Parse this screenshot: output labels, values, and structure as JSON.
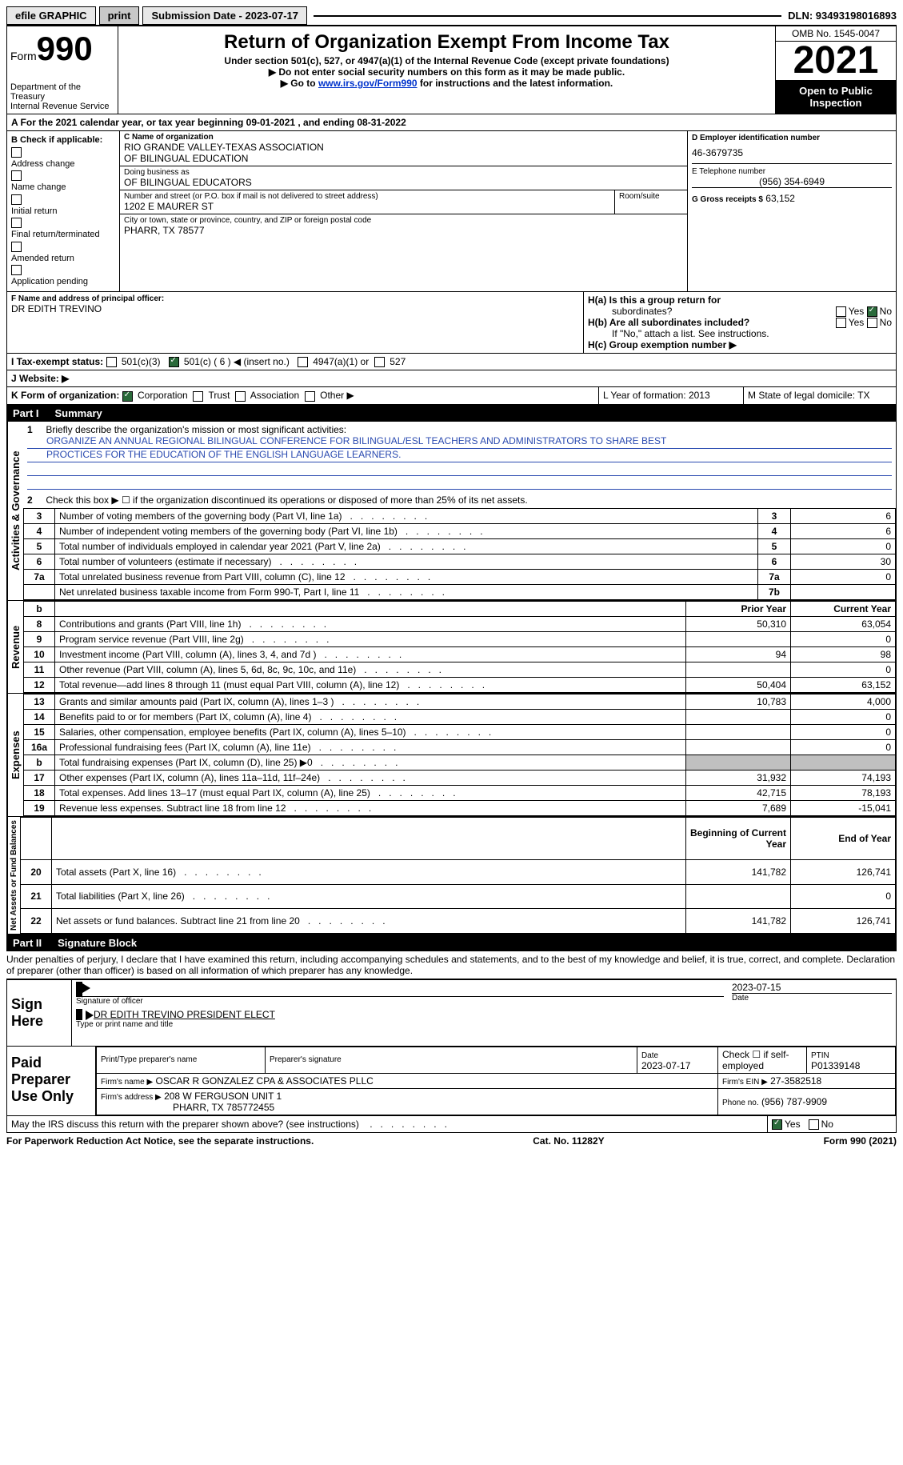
{
  "topbar": {
    "efile": "efile GRAPHIC",
    "print": "print",
    "subdate_label": "Submission Date - 2023-07-17",
    "dln_label": "DLN: 93493198016893"
  },
  "header": {
    "form_word": "Form",
    "form_num": "990",
    "dept": "Department of the Treasury",
    "irs": "Internal Revenue Service",
    "title": "Return of Organization Exempt From Income Tax",
    "subtitle": "Under section 501(c), 527, or 4947(a)(1) of the Internal Revenue Code (except private foundations)",
    "note1": "▶ Do not enter social security numbers on this form as it may be made public.",
    "note2_pre": "▶ Go to ",
    "note2_link": "www.irs.gov/Form990",
    "note2_post": " for instructions and the latest information.",
    "omb": "OMB No. 1545-0047",
    "year": "2021",
    "open": "Open to Public Inspection"
  },
  "period": {
    "line": "A For the 2021 calendar year, or tax year beginning 09-01-2021   , and ending 08-31-2022"
  },
  "blockB": {
    "label": "B Check if applicable:",
    "opts": [
      "Address change",
      "Name change",
      "Initial return",
      "Final return/terminated",
      "Amended return",
      "Application pending"
    ]
  },
  "blockC": {
    "name_label": "C Name of organization",
    "name1": "RIO GRANDE VALLEY-TEXAS ASSOCIATION",
    "name2": "OF BILINGUAL EDUCATION",
    "dba_label": "Doing business as",
    "dba": "OF BILINGUAL EDUCATORS",
    "addr_label": "Number and street (or P.O. box if mail is not delivered to street address)",
    "addr": "1202 E MAURER ST",
    "room_label": "Room/suite",
    "city_label": "City or town, state or province, country, and ZIP or foreign postal code",
    "city": "PHARR, TX   78577"
  },
  "blockD": {
    "label": "D Employer identification number",
    "val": "46-3679735"
  },
  "blockE": {
    "label": "E Telephone number",
    "val": "(956) 354-6949"
  },
  "blockG": {
    "label": "G Gross receipts $",
    "val": "63,152"
  },
  "blockF": {
    "label": "F Name and address of principal officer:",
    "val": "DR EDITH TREVINO"
  },
  "blockH": {
    "a": "H(a)  Is this a group return for",
    "a2": "subordinates?",
    "b": "H(b)  Are all subordinates included?",
    "b2": "If \"No,\" attach a list. See instructions.",
    "c": "H(c)  Group exemption number ▶"
  },
  "rowI": {
    "label": "I    Tax-exempt status:",
    "o1": "501(c)(3)",
    "o2": "501(c) ( 6 ) ◀ (insert no.)",
    "o3": "4947(a)(1) or",
    "o4": "527"
  },
  "rowJ": {
    "label": "J    Website: ▶"
  },
  "rowK": {
    "label": "K Form of organization:",
    "o1": "Corporation",
    "o2": "Trust",
    "o3": "Association",
    "o4": "Other ▶",
    "L": "L Year of formation: 2013",
    "M": "M State of legal domicile: TX"
  },
  "part1": {
    "label": "Part I",
    "title": "Summary",
    "l1a": "Briefly describe the organization's mission or most significant activities:",
    "l1b": "ORGANIZE AN ANNUAL REGIONAL BILINGUAL CONFERENCE FOR BILINGUAL/ESL TEACHERS AND ADMINISTRATORS TO SHARE BEST",
    "l1c": "PROCTICES FOR THE EDUCATION OF THE ENGLISH LANGUAGE LEARNERS.",
    "l2": "Check this box ▶ ☐  if the organization discontinued its operations or disposed of more than 25% of its net assets.",
    "vert_ag": "Activities & Governance",
    "vert_rev": "Revenue",
    "vert_exp": "Expenses",
    "vert_na": "Net Assets or Fund Balances"
  },
  "lines_ag": [
    {
      "n": "3",
      "t": "Number of voting members of the governing body (Part VI, line 1a)",
      "b": "3",
      "v": "6"
    },
    {
      "n": "4",
      "t": "Number of independent voting members of the governing body (Part VI, line 1b)",
      "b": "4",
      "v": "6"
    },
    {
      "n": "5",
      "t": "Total number of individuals employed in calendar year 2021 (Part V, line 2a)",
      "b": "5",
      "v": "0"
    },
    {
      "n": "6",
      "t": "Total number of volunteers (estimate if necessary)",
      "b": "6",
      "v": "30"
    },
    {
      "n": "7a",
      "t": "Total unrelated business revenue from Part VIII, column (C), line 12",
      "b": "7a",
      "v": "0"
    },
    {
      "n": "",
      "t": "Net unrelated business taxable income from Form 990-T, Part I, line 11",
      "b": "7b",
      "v": ""
    }
  ],
  "col_headers": {
    "prior": "Prior Year",
    "curr": "Current Year",
    "bcy": "Beginning of Current Year",
    "eoy": "End of Year"
  },
  "lines_rev": [
    {
      "n": "8",
      "t": "Contributions and grants (Part VIII, line 1h)",
      "p": "50,310",
      "c": "63,054"
    },
    {
      "n": "9",
      "t": "Program service revenue (Part VIII, line 2g)",
      "p": "",
      "c": "0"
    },
    {
      "n": "10",
      "t": "Investment income (Part VIII, column (A), lines 3, 4, and 7d )",
      "p": "94",
      "c": "98"
    },
    {
      "n": "11",
      "t": "Other revenue (Part VIII, column (A), lines 5, 6d, 8c, 9c, 10c, and 11e)",
      "p": "",
      "c": "0"
    },
    {
      "n": "12",
      "t": "Total revenue—add lines 8 through 11 (must equal Part VIII, column (A), line 12)",
      "p": "50,404",
      "c": "63,152"
    }
  ],
  "lines_exp": [
    {
      "n": "13",
      "t": "Grants and similar amounts paid (Part IX, column (A), lines 1–3 )",
      "p": "10,783",
      "c": "4,000"
    },
    {
      "n": "14",
      "t": "Benefits paid to or for members (Part IX, column (A), line 4)",
      "p": "",
      "c": "0"
    },
    {
      "n": "15",
      "t": "Salaries, other compensation, employee benefits (Part IX, column (A), lines 5–10)",
      "p": "",
      "c": "0"
    },
    {
      "n": "16a",
      "t": "Professional fundraising fees (Part IX, column (A), line 11e)",
      "p": "",
      "c": "0"
    },
    {
      "n": "b",
      "t": "Total fundraising expenses (Part IX, column (D), line 25) ▶0",
      "p": "GRAY",
      "c": "GRAY"
    },
    {
      "n": "17",
      "t": "Other expenses (Part IX, column (A), lines 11a–11d, 11f–24e)",
      "p": "31,932",
      "c": "74,193"
    },
    {
      "n": "18",
      "t": "Total expenses. Add lines 13–17 (must equal Part IX, column (A), line 25)",
      "p": "42,715",
      "c": "78,193"
    },
    {
      "n": "19",
      "t": "Revenue less expenses. Subtract line 18 from line 12",
      "p": "7,689",
      "c": "-15,041"
    }
  ],
  "lines_na": [
    {
      "n": "20",
      "t": "Total assets (Part X, line 16)",
      "p": "141,782",
      "c": "126,741"
    },
    {
      "n": "21",
      "t": "Total liabilities (Part X, line 26)",
      "p": "",
      "c": "0"
    },
    {
      "n": "22",
      "t": "Net assets or fund balances. Subtract line 21 from line 20",
      "p": "141,782",
      "c": "126,741"
    }
  ],
  "part2": {
    "label": "Part II",
    "title": "Signature Block",
    "decl": "Under penalties of perjury, I declare that I have examined this return, including accompanying schedules and statements, and to the best of my knowledge and belief, it is true, correct, and complete. Declaration of preparer (other than officer) is based on all information of which preparer has any knowledge."
  },
  "sign": {
    "here": "Sign Here",
    "sig_label": "Signature of officer",
    "date": "2023-07-15",
    "date_label": "Date",
    "name": "DR EDITH TREVINO  PRESIDENT ELECT",
    "name_label": "Type or print name and title"
  },
  "preparer": {
    "title": "Paid Preparer Use Only",
    "h1": "Print/Type preparer's name",
    "h2": "Preparer's signature",
    "h3": "Date",
    "h3v": "2023-07-17",
    "h4": "Check ☐ if self-employed",
    "h5": "PTIN",
    "h5v": "P01339148",
    "firm_label": "Firm's name     ▶",
    "firm": "OSCAR R GONZALEZ CPA & ASSOCIATES PLLC",
    "ein_label": "Firm's EIN ▶",
    "ein": "27-3582518",
    "addr_label": "Firm's address ▶",
    "addr1": "208 W FERGUSON UNIT 1",
    "addr2": "PHARR, TX  785772455",
    "phone_label": "Phone no.",
    "phone": "(956) 787-9909"
  },
  "discuss": "May the IRS discuss this return with the preparer shown above? (see instructions)",
  "foot": {
    "l": "For Paperwork Reduction Act Notice, see the separate instructions.",
    "c": "Cat. No. 11282Y",
    "r": "Form 990 (2021)"
  },
  "yesno": {
    "yes": "Yes",
    "no": "No"
  }
}
